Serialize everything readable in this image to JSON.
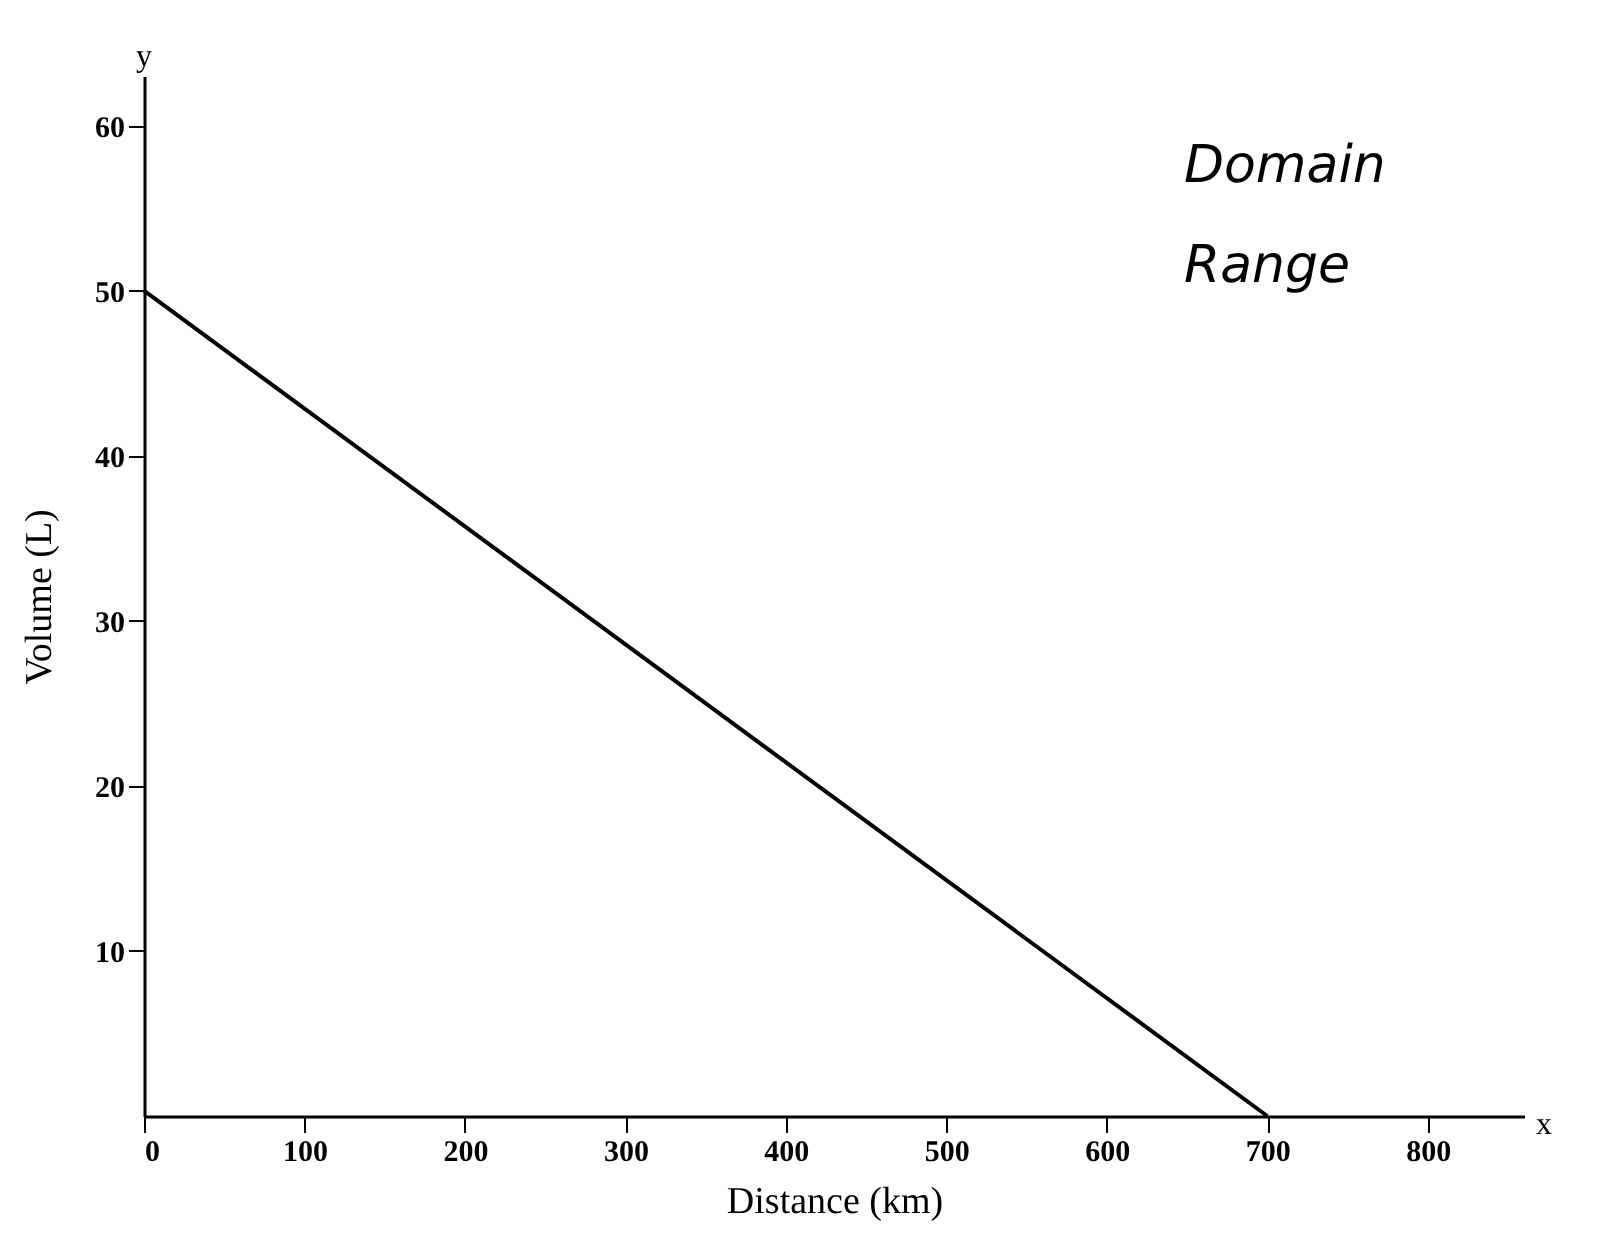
{
  "chart_data": {
    "type": "line",
    "xlabel": "Distance (km)",
    "ylabel": "Volume (L)",
    "x": [
      0,
      700
    ],
    "series": [
      {
        "color": "#000000",
        "values": [
          50,
          0
        ]
      }
    ],
    "xlim": [
      0,
      860
    ],
    "ylim": [
      0,
      63
    ],
    "xticks": [
      0,
      100,
      200,
      300,
      400,
      500,
      600,
      700,
      800
    ],
    "yticks": [
      10,
      20,
      30,
      40,
      50,
      60
    ],
    "grid": false,
    "marker": "none",
    "line_style": "solid",
    "annotations": [
      "x",
      "y",
      "Domain",
      "Range"
    ]
  }
}
